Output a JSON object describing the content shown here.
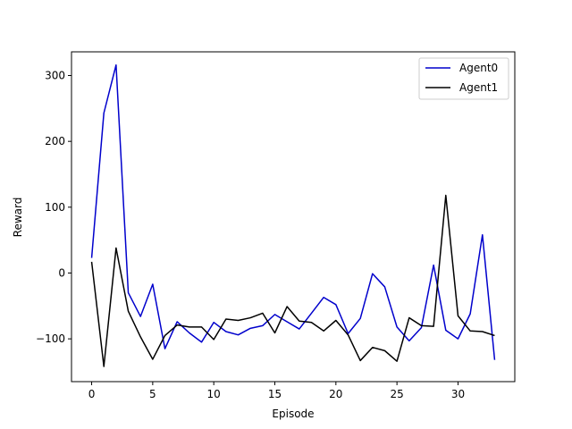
{
  "chart_data": {
    "type": "line",
    "title": "",
    "xlabel": "Episode",
    "ylabel": "Reward",
    "xlim": [
      -1.65,
      34.65
    ],
    "ylim": [
      -165,
      336
    ],
    "xticks": [
      0,
      5,
      10,
      15,
      20,
      25,
      30
    ],
    "yticks": [
      -100,
      0,
      100,
      200,
      300
    ],
    "grid": false,
    "legend_position": "top-right",
    "x": [
      0,
      1,
      2,
      3,
      4,
      5,
      6,
      7,
      8,
      9,
      10,
      11,
      12,
      13,
      14,
      15,
      16,
      17,
      18,
      19,
      20,
      21,
      22,
      23,
      24,
      25,
      26,
      27,
      28,
      29,
      30,
      31,
      32,
      33
    ],
    "series": [
      {
        "name": "Agent0",
        "color": "#0000cc",
        "values": [
          23,
          243,
          316,
          -30,
          -66,
          -17,
          -115,
          -74,
          -91,
          -105,
          -75,
          -89,
          -94,
          -84,
          -80,
          -63,
          -74,
          -85,
          -61,
          -37,
          -48,
          -92,
          -69,
          -1,
          -21,
          -82,
          -103,
          -83,
          12,
          -87,
          -100,
          -62,
          58,
          -132
        ]
      },
      {
        "name": "Agent1",
        "color": "#000000",
        "values": [
          17,
          -142,
          38,
          -58,
          -97,
          -131,
          -95,
          -79,
          -82,
          -82,
          -101,
          -70,
          -72,
          -68,
          -61,
          -91,
          -51,
          -73,
          -75,
          -88,
          -72,
          -94,
          -133,
          -113,
          -118,
          -134,
          -68,
          -80,
          -81,
          118,
          -65,
          -88,
          -89,
          -95
        ]
      }
    ]
  }
}
